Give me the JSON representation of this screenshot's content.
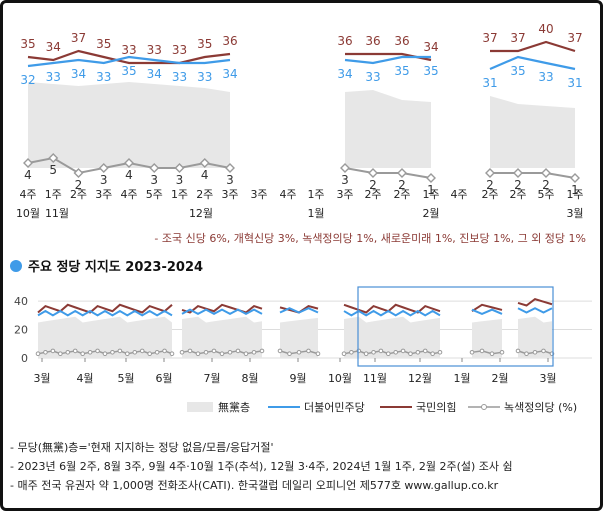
{
  "colors": {
    "minjoo": "#3f9be8",
    "ppp": "#8b3a35",
    "green": "#9a9a9a",
    "nonparty": "#e7e7e7",
    "box": "#4a8fd6"
  },
  "chart_data": [
    {
      "type": "line",
      "id": "detail",
      "segments": [
        {
          "labels": [
            "4주",
            "1주",
            "2주",
            "3주",
            "4주",
            "5주",
            "1주",
            "2주",
            "3주"
          ],
          "series": [
            {
              "name": "국민의힘",
              "values": [
                35,
                34,
                37,
                35,
                33,
                33,
                33,
                35,
                36
              ]
            },
            {
              "name": "더불어민주당",
              "values": [
                32,
                33,
                34,
                33,
                35,
                34,
                33,
                33,
                34
              ]
            },
            {
              "name": "녹색정의당",
              "values": [
                4,
                5,
                2,
                3,
                4,
                3,
                3,
                4,
                3
              ]
            }
          ],
          "nonparty_level": "high"
        },
        {
          "labels": [
            "3주",
            "4주",
            "1주"
          ],
          "series": [
            {
              "name": "국민의힘",
              "values": [
                null,
                null,
                null
              ]
            },
            {
              "name": "더불어민주당",
              "values": [
                null,
                null,
                null
              ]
            },
            {
              "name": "녹색정의당",
              "values": [
                null,
                null,
                null
              ]
            }
          ],
          "gap": true
        },
        {
          "labels": [
            "3주",
            "2주",
            "2주",
            "1주"
          ],
          "series": [
            {
              "name": "국민의힘",
              "values": [
                36,
                36,
                36,
                34
              ]
            },
            {
              "name": "더불어민주당",
              "values": [
                34,
                33,
                35,
                35
              ]
            },
            {
              "name": "녹색정의당",
              "values": [
                3,
                2,
                2,
                1
              ]
            }
          ]
        },
        {
          "labels": [
            "4주"
          ],
          "gap": true
        },
        {
          "labels": [
            "2주",
            "2주",
            "5주",
            "1주"
          ],
          "series": [
            {
              "name": "국민의힘",
              "values": [
                37,
                37,
                40,
                37
              ]
            },
            {
              "name": "더불어민주당",
              "values": [
                31,
                35,
                33,
                31
              ]
            },
            {
              "name": "녹색정의당",
              "values": [
                2,
                2,
                2,
                1
              ]
            }
          ]
        }
      ],
      "month_labels": [
        "10월",
        "11월",
        "12월",
        "1월",
        "2월",
        "3월"
      ],
      "footnote": "- 조국 신당 6%, 개혁신당 3%, 녹색정의당 1%, 새로운미래 1%, 진보당 1%, 그 외 정당 1%"
    },
    {
      "type": "line",
      "id": "overview",
      "title": "주요 정당 지지도 2023-2024",
      "yticks": [
        0,
        20,
        40
      ],
      "ylim": [
        0,
        45
      ],
      "month_labels": [
        "3월",
        "4월",
        "5월",
        "6월",
        "7월",
        "8월",
        "9월",
        "10월",
        "11월",
        "12월",
        "1월",
        "2월",
        "3월"
      ],
      "legend": [
        "無黨층",
        "더불어민주당",
        "국민의힘",
        "녹색정의당 (%)"
      ],
      "series": [
        {
          "name": "국민의힘",
          "approx": "30-40 range"
        },
        {
          "name": "더불어민주당",
          "approx": "27-37 range"
        },
        {
          "name": "녹색정의당",
          "approx": "2-6 range"
        }
      ]
    }
  ],
  "notes": [
    "- 무당(無黨)층='현재 지지하는 정당 없음/모름/응답거절'",
    "- 2023년 6월 2주, 8월 3주, 9월 4주·10월 1주(추석), 12월 3·4주, 2024년 1월 1주, 2월 2주(설) 조사 쉼",
    "- 매주 전국 유권자 약 1,000명 전화조사(CATI). 한국갤럽 데일리 오피니언 제577호 www.gallup.co.kr"
  ]
}
